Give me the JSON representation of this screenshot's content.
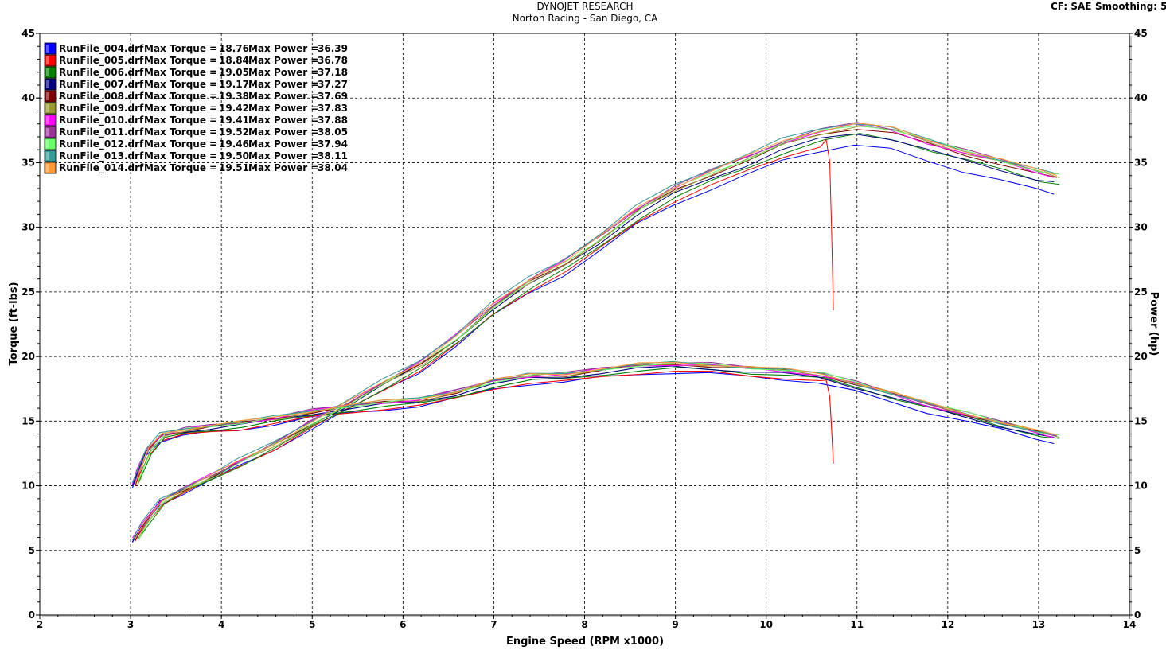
{
  "header": {
    "title": "DYNOJET RESEARCH",
    "subtitle": "Norton Racing - San Diego, CA",
    "cf_label": "CF: SAE",
    "smoothing_label": "Smoothing: 5"
  },
  "chart_data": {
    "type": "line",
    "title": "DYNOJET RESEARCH",
    "subtitle": "Norton Racing - San Diego, CA",
    "xlabel": "Engine Speed (RPM x1000)",
    "ylabel": "Torque (ft-lbs)",
    "y2label": "Power (hp)",
    "xlim": [
      2,
      14
    ],
    "ylim": [
      0,
      45
    ],
    "y2lim": [
      0,
      45
    ],
    "x_ticks": [
      2,
      3,
      4,
      5,
      6,
      7,
      8,
      9,
      10,
      11,
      12,
      13,
      14
    ],
    "y_ticks": [
      0,
      5,
      10,
      15,
      20,
      25,
      30,
      35,
      40,
      45
    ],
    "grid": true,
    "legend_position": "top-left",
    "torque_label": "Max Torque =",
    "power_label": "Max Power =",
    "series": [
      {
        "name": "RunFile_004.drf",
        "color": "#0000ff",
        "max_torque": "18.76",
        "max_power": "36.39"
      },
      {
        "name": "RunFile_005.drf",
        "color": "#ff0000",
        "max_torque": "18.84",
        "max_power": "36.78"
      },
      {
        "name": "RunFile_006.drf",
        "color": "#008000",
        "max_torque": "19.05",
        "max_power": "37.18"
      },
      {
        "name": "RunFile_007.drf",
        "color": "#000080",
        "max_torque": "19.17",
        "max_power": "37.27"
      },
      {
        "name": "RunFile_008.drf",
        "color": "#800000",
        "max_torque": "19.38",
        "max_power": "37.69"
      },
      {
        "name": "RunFile_009.drf",
        "color": "#999933",
        "max_torque": "19.42",
        "max_power": "37.83"
      },
      {
        "name": "RunFile_010.drf",
        "color": "#ff00ff",
        "max_torque": "19.41",
        "max_power": "37.88"
      },
      {
        "name": "RunFile_011.drf",
        "color": "#993399",
        "max_torque": "19.52",
        "max_power": "38.05"
      },
      {
        "name": "RunFile_012.drf",
        "color": "#66ff66",
        "max_torque": "19.46",
        "max_power": "37.94"
      },
      {
        "name": "RunFile_013.drf",
        "color": "#339999",
        "max_torque": "19.50",
        "max_power": "38.11"
      },
      {
        "name": "RunFile_014.drf",
        "color": "#ff9933",
        "max_torque": "19.51",
        "max_power": "38.04"
      }
    ],
    "torque_curve": {
      "x": [
        3.05,
        3.1,
        3.2,
        3.35,
        3.6,
        3.9,
        4.2,
        4.6,
        5.0,
        5.4,
        5.8,
        6.2,
        6.6,
        7.0,
        7.4,
        7.8,
        8.2,
        8.6,
        9.0,
        9.4,
        9.8,
        10.2,
        10.6,
        11.0,
        11.4,
        11.8,
        12.2,
        12.6,
        13.0,
        13.2
      ],
      "y": [
        10.0,
        11.0,
        12.6,
        13.7,
        14.1,
        14.4,
        14.6,
        15.0,
        15.5,
        15.9,
        16.2,
        16.4,
        17.0,
        17.8,
        18.2,
        18.3,
        18.7,
        19.0,
        19.1,
        19.0,
        18.8,
        18.6,
        18.3,
        17.6,
        16.8,
        16.0,
        15.3,
        14.6,
        13.9,
        13.6
      ]
    },
    "power_curve": {
      "x": [
        3.05,
        3.15,
        3.35,
        3.6,
        3.9,
        4.2,
        4.6,
        5.0,
        5.4,
        5.8,
        6.2,
        6.6,
        7.0,
        7.4,
        7.8,
        8.2,
        8.6,
        9.0,
        9.4,
        9.8,
        10.2,
        10.6,
        11.0,
        11.4,
        11.8,
        12.2,
        12.6,
        13.0,
        13.2
      ],
      "y": [
        5.8,
        7.0,
        8.8,
        9.7,
        10.7,
        11.8,
        13.2,
        14.8,
        16.3,
        17.9,
        19.4,
        21.4,
        23.8,
        25.7,
        27.2,
        29.1,
        31.2,
        32.8,
        34.0,
        35.1,
        36.3,
        37.1,
        37.6,
        37.2,
        36.3,
        35.5,
        34.8,
        34.0,
        33.7
      ]
    },
    "run005_drop": {
      "x": [
        10.66,
        10.7,
        10.72,
        10.74
      ],
      "power": [
        36.7,
        35.0,
        30.0,
        23.6
      ],
      "torque": [
        18.1,
        17.0,
        14.5,
        11.6
      ]
    }
  }
}
